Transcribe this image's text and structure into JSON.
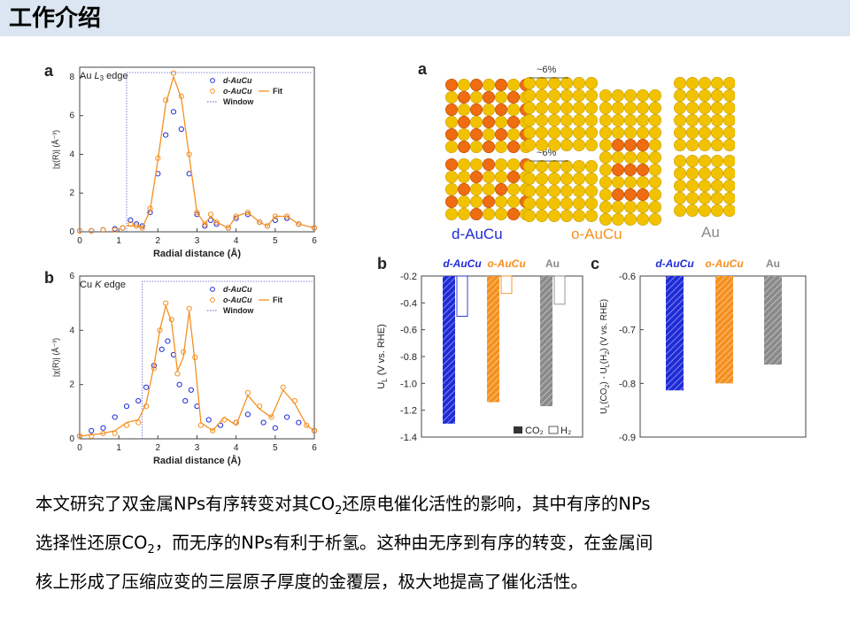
{
  "page": {
    "title": "工作介绍",
    "colors": {
      "header_bg": "#dce6f2",
      "blue": "#1f2bd6",
      "orange": "#f5901f",
      "gray": "#8a8a8a"
    }
  },
  "body_text": {
    "line1_a": "本文研究了双金属NPs有序转变对其CO",
    "line1_sub": "2",
    "line1_b": "还原电催化活性的影响，其中有序的NPs",
    "line2_a": "选择性还原CO",
    "line2_sub": "2",
    "line2_b": "，而无序的NPs有利于析氢。这种由无序到有序的转变，在金属间",
    "line3": "核上形成了压缩应变的三层原子厚度的金覆层，极大地提高了催化活性。"
  },
  "structures": {
    "panel_label": "a",
    "labels": [
      "d-AuCu",
      "o-AuCu",
      "Au"
    ],
    "strain_label_top": "~6%",
    "strain_label_bottom": "~6%"
  },
  "chart_data": [
    {
      "id": "exafs-au",
      "type": "line",
      "panel_label": "a",
      "edge_label_a": "Au ",
      "edge_label_b": "L",
      "edge_label_sub": "3",
      "edge_label_c": " edge",
      "xlabel": "Radial distance (Å)",
      "ylabel": "|χ(R)| (Å⁻³)",
      "xlim": [
        0,
        6
      ],
      "ylim": [
        0,
        8.5
      ],
      "xticks": [
        0,
        1,
        2,
        3,
        4,
        5,
        6
      ],
      "yticks": [
        0,
        2,
        4,
        6,
        8
      ],
      "window": [
        1.2,
        6
      ],
      "legend": [
        "d-AuCu",
        "o-AuCu",
        "Fit",
        "Window"
      ],
      "series": [
        {
          "name": "d-AuCu",
          "style": "circles",
          "color": "#1f2bd6",
          "x": [
            0,
            0.3,
            0.6,
            0.9,
            1.1,
            1.3,
            1.45,
            1.6,
            1.8,
            2.0,
            2.2,
            2.4,
            2.6,
            2.8,
            3.0,
            3.2,
            3.35,
            3.5,
            3.8,
            4.0,
            4.3,
            4.6,
            4.8,
            5.0,
            5.3,
            5.6,
            6.0
          ],
          "y": [
            0.05,
            0.05,
            0.1,
            0.15,
            0.2,
            0.6,
            0.4,
            0.3,
            1.0,
            3.0,
            5.0,
            6.2,
            5.3,
            3.0,
            0.9,
            0.3,
            0.6,
            0.4,
            0.2,
            0.7,
            0.9,
            0.5,
            0.3,
            0.6,
            0.7,
            0.4,
            0.2
          ]
        },
        {
          "name": "o-AuCu",
          "style": "circles",
          "color": "#f5901f",
          "x": [
            0,
            0.3,
            0.6,
            0.9,
            1.1,
            1.3,
            1.45,
            1.6,
            1.8,
            2.0,
            2.2,
            2.4,
            2.6,
            2.8,
            3.0,
            3.2,
            3.35,
            3.5,
            3.8,
            4.0,
            4.3,
            4.6,
            4.8,
            5.0,
            5.3,
            5.6,
            6.0
          ],
          "y": [
            0.05,
            0.05,
            0.1,
            0.1,
            0.2,
            0.4,
            0.3,
            0.2,
            1.2,
            3.8,
            6.8,
            8.2,
            7.0,
            4.0,
            1.0,
            0.4,
            0.9,
            0.5,
            0.2,
            0.8,
            1.0,
            0.5,
            0.3,
            0.8,
            0.8,
            0.4,
            0.2
          ]
        },
        {
          "name": "Fit",
          "style": "line",
          "color": "#f5901f",
          "x": [
            1.2,
            1.45,
            1.6,
            1.8,
            2.0,
            2.2,
            2.4,
            2.6,
            2.8,
            3.0,
            3.2,
            3.35,
            3.5,
            3.8,
            4.0,
            4.3,
            4.6,
            4.8,
            5.0,
            5.3,
            5.6,
            6.0
          ],
          "y": [
            0.3,
            0.3,
            0.2,
            1.1,
            3.7,
            6.6,
            8.0,
            6.9,
            3.9,
            1.0,
            0.4,
            0.8,
            0.5,
            0.2,
            0.8,
            1.0,
            0.5,
            0.3,
            0.8,
            0.8,
            0.4,
            0.2
          ]
        }
      ]
    },
    {
      "id": "exafs-cu",
      "type": "line",
      "panel_label": "b",
      "edge_label_a": "Cu ",
      "edge_label_b": "K",
      "edge_label_c": " edge",
      "xlabel": "Radial distance (Å)",
      "ylabel": "|χ(R)| (Å⁻³)",
      "xlim": [
        0,
        6
      ],
      "ylim": [
        0,
        6
      ],
      "xticks": [
        0,
        1,
        2,
        3,
        4,
        5,
        6
      ],
      "yticks": [
        0,
        2,
        4,
        6
      ],
      "window": [
        1.6,
        6
      ],
      "legend": [
        "d-AuCu",
        "o-AuCu",
        "Fit",
        "Window"
      ],
      "series": [
        {
          "name": "d-AuCu",
          "style": "circles",
          "color": "#1f2bd6",
          "x": [
            0,
            0.3,
            0.6,
            0.9,
            1.2,
            1.5,
            1.7,
            1.9,
            2.1,
            2.25,
            2.4,
            2.55,
            2.7,
            2.85,
            3.0,
            3.3,
            3.6,
            4.0,
            4.3,
            4.7,
            5.0,
            5.3,
            5.6,
            6.0
          ],
          "y": [
            0.1,
            0.3,
            0.4,
            0.8,
            1.2,
            1.4,
            1.9,
            2.7,
            3.3,
            3.6,
            3.1,
            2.0,
            1.4,
            1.8,
            1.2,
            0.7,
            0.5,
            0.6,
            0.9,
            0.6,
            0.4,
            0.8,
            0.6,
            0.3
          ]
        },
        {
          "name": "o-AuCu",
          "style": "circles",
          "color": "#f5901f",
          "x": [
            0,
            0.3,
            0.6,
            0.9,
            1.2,
            1.5,
            1.7,
            1.9,
            2.05,
            2.2,
            2.35,
            2.5,
            2.65,
            2.8,
            2.95,
            3.1,
            3.4,
            3.7,
            4.0,
            4.3,
            4.6,
            4.9,
            5.2,
            5.5,
            5.8,
            6.0
          ],
          "y": [
            0.1,
            0.1,
            0.2,
            0.2,
            0.5,
            0.6,
            1.2,
            2.6,
            4.0,
            5.0,
            4.4,
            2.4,
            3.2,
            4.8,
            3.0,
            0.5,
            0.3,
            0.7,
            0.6,
            1.7,
            1.2,
            0.8,
            1.9,
            1.4,
            0.5,
            0.3
          ]
        },
        {
          "name": "Fit",
          "style": "line",
          "color": "#f5901f",
          "x": [
            0,
            0.3,
            0.6,
            0.9,
            1.2,
            1.5,
            1.7,
            1.9,
            2.05,
            2.2,
            2.35,
            2.5,
            2.65,
            2.8,
            2.95,
            3.1,
            3.4,
            3.7,
            4.0,
            4.3,
            4.6,
            4.9,
            5.2,
            5.5,
            5.8,
            6.0
          ],
          "y": [
            0.1,
            0.15,
            0.2,
            0.3,
            0.6,
            0.7,
            1.3,
            2.7,
            4.0,
            4.9,
            4.3,
            2.5,
            3.0,
            4.7,
            2.8,
            0.6,
            0.3,
            0.8,
            0.5,
            1.6,
            1.1,
            0.8,
            1.8,
            1.3,
            0.5,
            0.3
          ]
        }
      ]
    },
    {
      "id": "limiting-potential",
      "type": "bar",
      "panel_label": "b",
      "categories": [
        "d-AuCu",
        "o-AuCu",
        "Au"
      ],
      "ylabel": "U",
      "ylabel_sub": "L",
      "ylabel_rest": " (V vs. RHE)",
      "ylim": [
        -1.4,
        -0.2
      ],
      "yticks": [
        -0.2,
        -0.4,
        -0.6,
        -0.8,
        -1.0,
        -1.2,
        -1.4
      ],
      "series": [
        {
          "name": "CO₂",
          "pattern": "solid",
          "values": [
            -1.3,
            -1.14,
            -1.17
          ]
        },
        {
          "name": "H₂",
          "pattern": "hatched",
          "values": [
            -0.5,
            -0.33,
            -0.41
          ]
        }
      ],
      "legend": [
        "CO₂",
        "H₂"
      ]
    },
    {
      "id": "potential-difference",
      "type": "bar",
      "panel_label": "c",
      "categories": [
        "d-AuCu",
        "o-AuCu",
        "Au"
      ],
      "ylabel": "U",
      "ylabel_sub": "L",
      "ylabel_rest": "(CO",
      "ylabel_sub2": "2",
      "ylabel_rest2": ") - U",
      "ylabel_sub3": "L",
      "ylabel_rest3": "(H",
      "ylabel_sub4": "2",
      "ylabel_rest4": ") (V vs. RHE)",
      "ylim": [
        -0.9,
        -0.6
      ],
      "yticks": [
        -0.6,
        -0.7,
        -0.8,
        -0.9
      ],
      "series": [
        {
          "name": "difference",
          "values": [
            -0.813,
            -0.8,
            -0.765
          ]
        }
      ]
    }
  ]
}
